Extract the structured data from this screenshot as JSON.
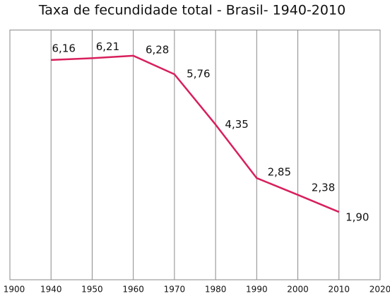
{
  "chart_data": {
    "type": "line",
    "title": "Taxa de fecundidade total - Brasil- 1940-2010",
    "categories": [
      "1900",
      "1940",
      "1950",
      "1960",
      "1970",
      "1980",
      "1990",
      "2000",
      "2010",
      "2020"
    ],
    "series": [
      {
        "name": null,
        "color": "#d81f5c",
        "values": [
          null,
          6.16,
          6.21,
          6.28,
          5.76,
          4.35,
          2.85,
          2.38,
          1.9,
          null
        ],
        "value_labels": [
          null,
          "6,16",
          "6,21",
          "6,28",
          "5,76",
          "4,35",
          "2,85",
          "2,38",
          "1,90",
          null
        ]
      }
    ],
    "ylim": [
      0,
      7
    ],
    "grid": true
  }
}
